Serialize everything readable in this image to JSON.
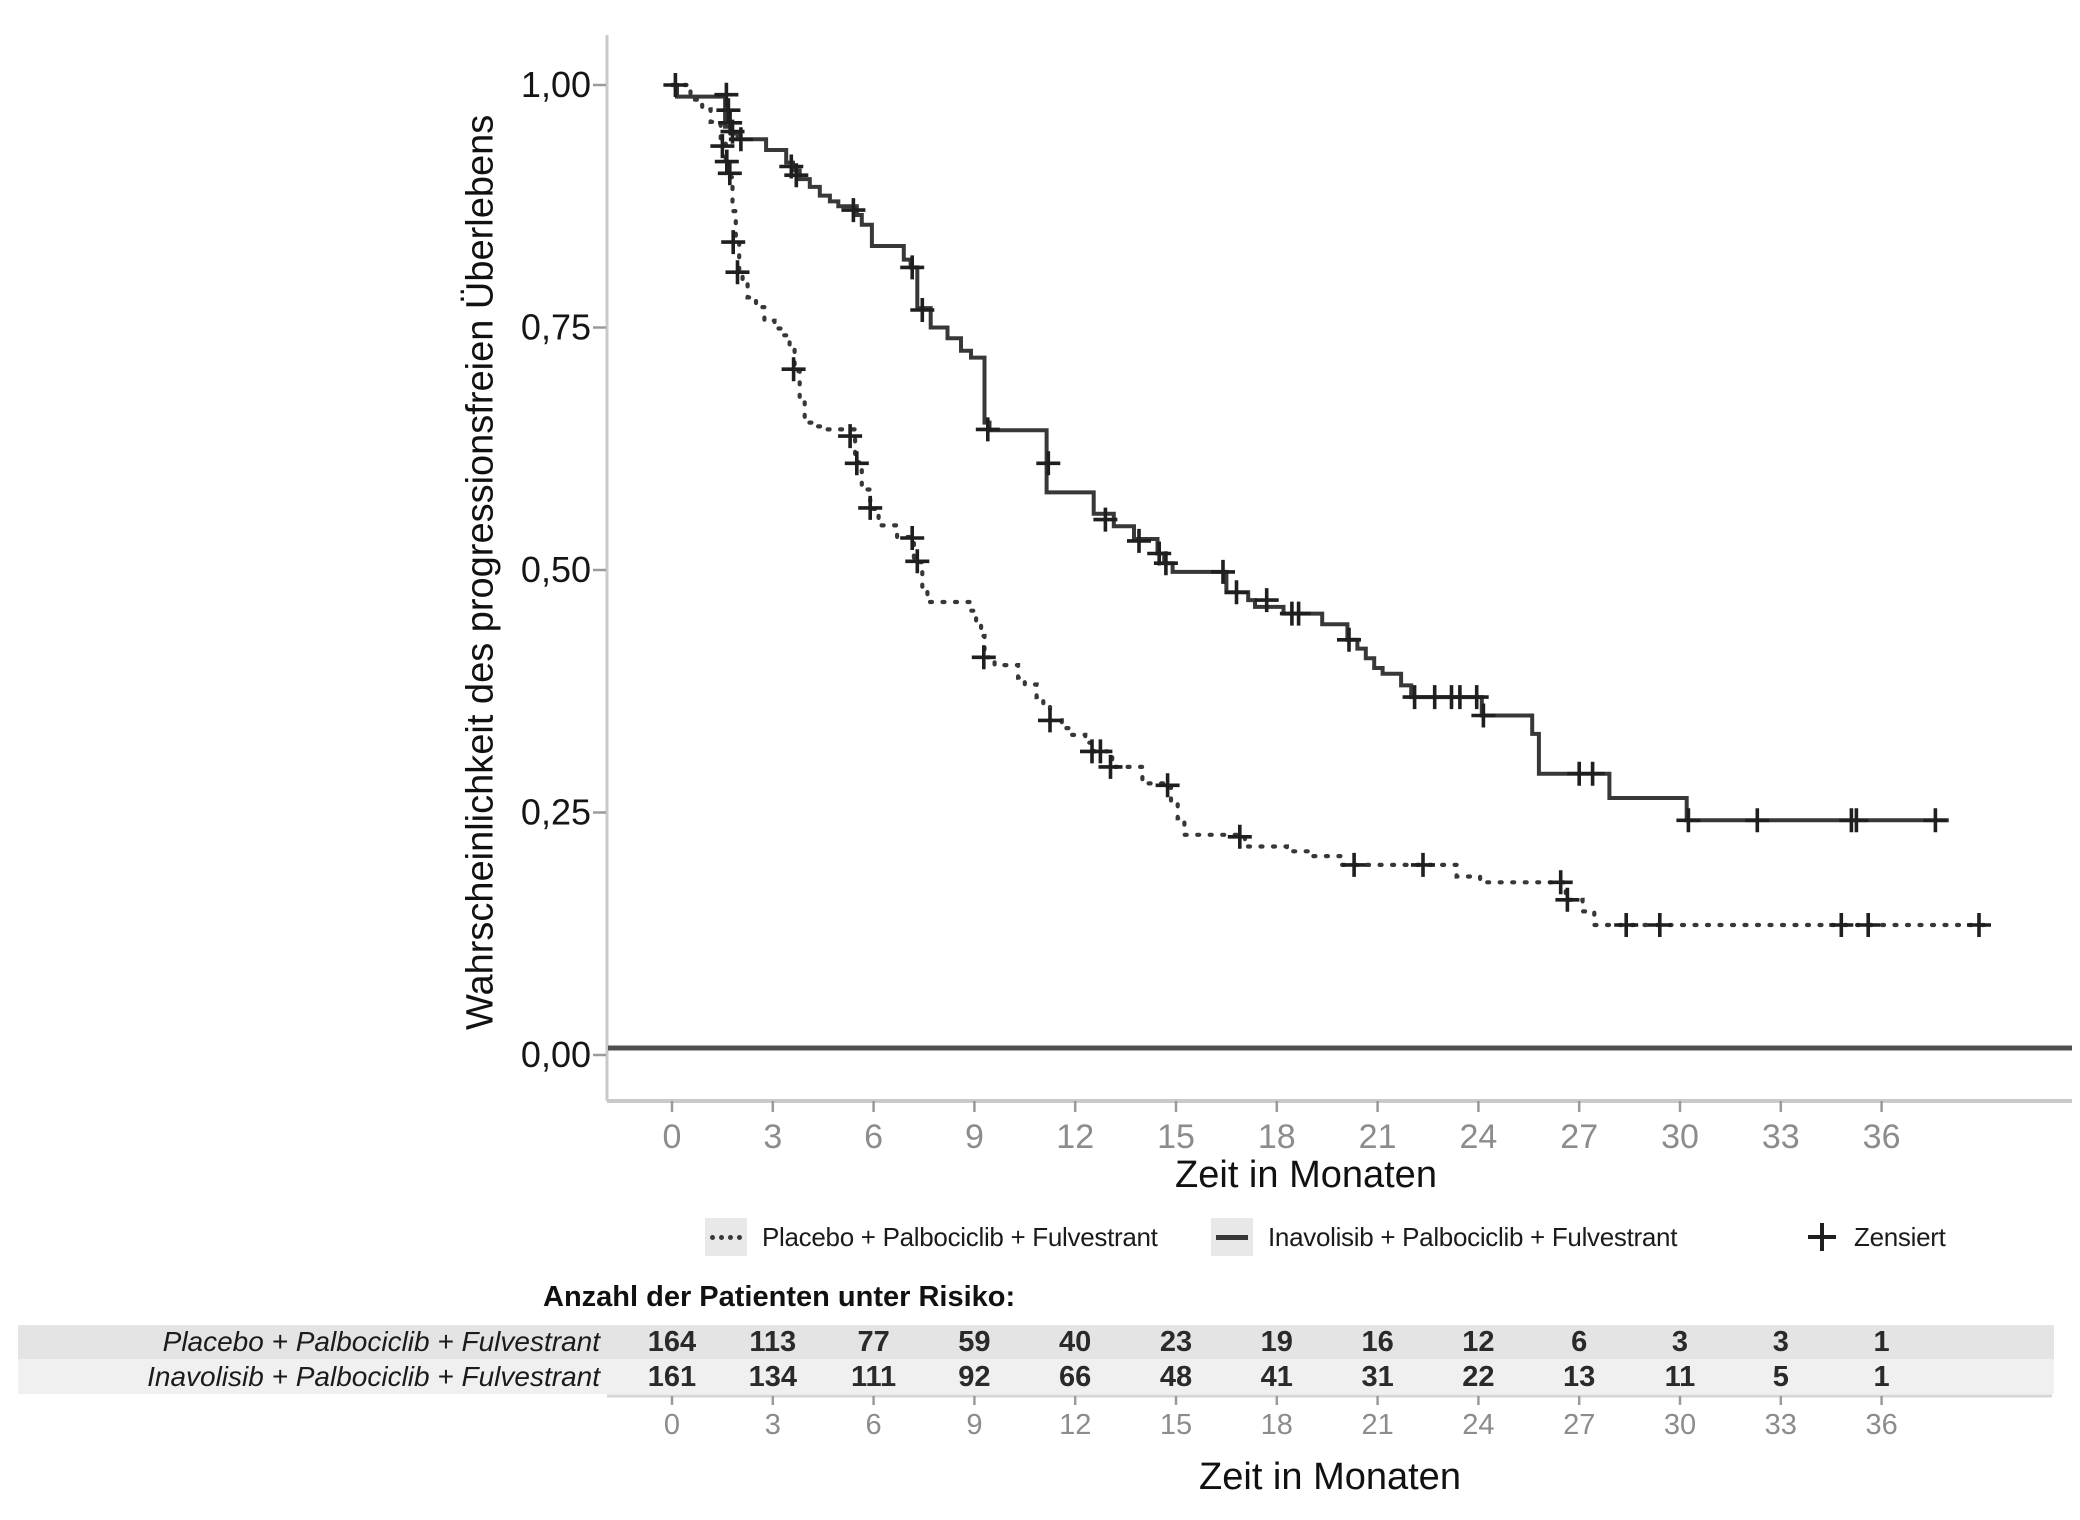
{
  "chart_data": {
    "type": "line",
    "subtype": "kaplan-meier-step",
    "title": "",
    "xlabel": "Zeit in Monaten",
    "ylabel": "Wahrscheinlichkeit des progressionsfreien Überlebens",
    "xlim": [
      0,
      41
    ],
    "ylim": [
      0,
      1.0
    ],
    "grid": false,
    "legend_position": "bottom",
    "y_ticks": [
      {
        "value": 1.0,
        "label": "1,00"
      },
      {
        "value": 0.75,
        "label": "0,75"
      },
      {
        "value": 0.5,
        "label": "0,50"
      },
      {
        "value": 0.25,
        "label": "0,25"
      },
      {
        "value": 0.0,
        "label": "0,00"
      }
    ],
    "x_ticks": [
      {
        "value": 0,
        "label": "0"
      },
      {
        "value": 3,
        "label": "3"
      },
      {
        "value": 6,
        "label": "6"
      },
      {
        "value": 9,
        "label": "9"
      },
      {
        "value": 12,
        "label": "12"
      },
      {
        "value": 15,
        "label": "15"
      },
      {
        "value": 18,
        "label": "18"
      },
      {
        "value": 21,
        "label": "21"
      },
      {
        "value": 24,
        "label": "24"
      },
      {
        "value": 27,
        "label": "27"
      },
      {
        "value": 30,
        "label": "30"
      },
      {
        "value": 33,
        "label": "33"
      },
      {
        "value": 36,
        "label": "36"
      }
    ],
    "series": [
      {
        "name": "Placebo + Palbociclib + Fulvestrant",
        "style": "dotted",
        "end_month": 39.3,
        "steps": [
          [
            0,
            1.0
          ],
          [
            0.55,
            0.985
          ],
          [
            0.9,
            0.975
          ],
          [
            1.15,
            0.962
          ],
          [
            1.45,
            0.94
          ],
          [
            1.6,
            0.925
          ],
          [
            1.7,
            0.905
          ],
          [
            1.8,
            0.87
          ],
          [
            1.9,
            0.84
          ],
          [
            2.0,
            0.807
          ],
          [
            2.1,
            0.795
          ],
          [
            2.25,
            0.781
          ],
          [
            2.5,
            0.771
          ],
          [
            2.75,
            0.757
          ],
          [
            3.05,
            0.749
          ],
          [
            3.3,
            0.742
          ],
          [
            3.5,
            0.73
          ],
          [
            3.65,
            0.705
          ],
          [
            3.8,
            0.676
          ],
          [
            3.95,
            0.652
          ],
          [
            4.3,
            0.648
          ],
          [
            4.6,
            0.645
          ],
          [
            5.45,
            0.611
          ],
          [
            5.65,
            0.583
          ],
          [
            5.9,
            0.563
          ],
          [
            6.15,
            0.546
          ],
          [
            6.7,
            0.534
          ],
          [
            7.2,
            0.508
          ],
          [
            7.45,
            0.481
          ],
          [
            7.6,
            0.467
          ],
          [
            8.9,
            0.458
          ],
          [
            9.05,
            0.448
          ],
          [
            9.2,
            0.432
          ],
          [
            9.3,
            0.41
          ],
          [
            9.6,
            0.402
          ],
          [
            10.3,
            0.389
          ],
          [
            10.5,
            0.382
          ],
          [
            10.85,
            0.369
          ],
          [
            11.05,
            0.36
          ],
          [
            11.25,
            0.345
          ],
          [
            11.6,
            0.337
          ],
          [
            11.9,
            0.33
          ],
          [
            12.3,
            0.322
          ],
          [
            12.55,
            0.313
          ],
          [
            13.1,
            0.297
          ],
          [
            14.0,
            0.28
          ],
          [
            14.85,
            0.261
          ],
          [
            15.05,
            0.244
          ],
          [
            15.25,
            0.227
          ],
          [
            17.05,
            0.215
          ],
          [
            18.3,
            0.21
          ],
          [
            19.0,
            0.205
          ],
          [
            19.9,
            0.196
          ],
          [
            23.35,
            0.184
          ],
          [
            24.05,
            0.178
          ],
          [
            26.6,
            0.16
          ],
          [
            27.1,
            0.148
          ],
          [
            27.45,
            0.134
          ]
        ],
        "censored": [
          [
            1.5,
            0.937
          ],
          [
            1.63,
            0.921
          ],
          [
            1.72,
            0.909
          ],
          [
            1.82,
            0.838
          ],
          [
            1.95,
            0.807
          ],
          [
            3.62,
            0.707
          ],
          [
            5.3,
            0.638
          ],
          [
            5.5,
            0.61
          ],
          [
            5.9,
            0.564
          ],
          [
            7.15,
            0.533
          ],
          [
            7.3,
            0.509
          ],
          [
            9.28,
            0.41
          ],
          [
            11.25,
            0.345
          ],
          [
            12.5,
            0.313
          ],
          [
            12.75,
            0.313
          ],
          [
            13.05,
            0.297
          ],
          [
            14.75,
            0.278
          ],
          [
            16.9,
            0.225
          ],
          [
            20.3,
            0.196
          ],
          [
            22.35,
            0.196
          ],
          [
            26.45,
            0.178
          ],
          [
            26.65,
            0.16
          ],
          [
            28.4,
            0.134
          ],
          [
            29.4,
            0.134
          ],
          [
            34.8,
            0.134
          ],
          [
            35.6,
            0.134
          ],
          [
            38.9,
            0.134
          ]
        ]
      },
      {
        "name": "Inavolisib + Palbociclib + Fulvestrant",
        "style": "solid",
        "end_month": 38.0,
        "steps": [
          [
            0,
            1.0
          ],
          [
            0.15,
            0.988
          ],
          [
            1.58,
            0.957
          ],
          [
            1.75,
            0.95
          ],
          [
            1.95,
            0.944
          ],
          [
            2.8,
            0.933
          ],
          [
            3.4,
            0.92
          ],
          [
            3.6,
            0.912
          ],
          [
            3.8,
            0.903
          ],
          [
            4.1,
            0.895
          ],
          [
            4.4,
            0.886
          ],
          [
            4.7,
            0.88
          ],
          [
            4.95,
            0.875
          ],
          [
            5.5,
            0.866
          ],
          [
            5.65,
            0.856
          ],
          [
            5.95,
            0.834
          ],
          [
            6.9,
            0.82
          ],
          [
            7.1,
            0.812
          ],
          [
            7.3,
            0.77
          ],
          [
            7.7,
            0.75
          ],
          [
            8.2,
            0.739
          ],
          [
            8.6,
            0.726
          ],
          [
            8.9,
            0.719
          ],
          [
            9.3,
            0.652
          ],
          [
            9.45,
            0.644
          ],
          [
            11.15,
            0.58
          ],
          [
            12.55,
            0.558
          ],
          [
            13.15,
            0.545
          ],
          [
            13.75,
            0.532
          ],
          [
            14.45,
            0.517
          ],
          [
            14.65,
            0.507
          ],
          [
            14.9,
            0.498
          ],
          [
            16.5,
            0.477
          ],
          [
            17.15,
            0.469
          ],
          [
            17.35,
            0.462
          ],
          [
            18.2,
            0.455
          ],
          [
            19.35,
            0.444
          ],
          [
            20.1,
            0.428
          ],
          [
            20.4,
            0.419
          ],
          [
            20.65,
            0.409
          ],
          [
            20.9,
            0.399
          ],
          [
            21.15,
            0.393
          ],
          [
            21.7,
            0.381
          ],
          [
            22.0,
            0.369
          ],
          [
            24.1,
            0.35
          ],
          [
            25.6,
            0.331
          ],
          [
            25.8,
            0.29
          ],
          [
            27.9,
            0.265
          ],
          [
            30.2,
            0.242
          ]
        ],
        "censored": [
          [
            0.1,
            1.0
          ],
          [
            1.62,
            0.99
          ],
          [
            1.68,
            0.974
          ],
          [
            1.73,
            0.961
          ],
          [
            1.8,
            0.952
          ],
          [
            2.05,
            0.944
          ],
          [
            3.55,
            0.916
          ],
          [
            3.7,
            0.907
          ],
          [
            5.4,
            0.871
          ],
          [
            7.15,
            0.812
          ],
          [
            7.45,
            0.768
          ],
          [
            9.4,
            0.645
          ],
          [
            11.2,
            0.61
          ],
          [
            12.9,
            0.552
          ],
          [
            13.9,
            0.53
          ],
          [
            14.5,
            0.517
          ],
          [
            14.7,
            0.507
          ],
          [
            16.4,
            0.498
          ],
          [
            16.8,
            0.477
          ],
          [
            17.7,
            0.469
          ],
          [
            18.45,
            0.455
          ],
          [
            18.65,
            0.455
          ],
          [
            20.15,
            0.428
          ],
          [
            22.1,
            0.369
          ],
          [
            22.7,
            0.369
          ],
          [
            23.2,
            0.369
          ],
          [
            23.45,
            0.369
          ],
          [
            23.95,
            0.369
          ],
          [
            24.15,
            0.35
          ],
          [
            27.0,
            0.29
          ],
          [
            27.4,
            0.29
          ],
          [
            30.25,
            0.242
          ],
          [
            32.3,
            0.242
          ],
          [
            35.1,
            0.242
          ],
          [
            35.25,
            0.242
          ],
          [
            37.6,
            0.242
          ]
        ]
      }
    ],
    "legend": [
      {
        "label": "Placebo + Palbociclib + Fulvestrant",
        "swatch": "dotted-line"
      },
      {
        "label": "Inavolisib + Palbociclib + Fulvestrant",
        "swatch": "solid-line"
      },
      {
        "label": "Zensiert",
        "swatch": "plus"
      }
    ],
    "censor_marker": "+"
  },
  "risk_table": {
    "title": "Anzahl der Patienten unter Risiko:",
    "months": [
      0,
      3,
      6,
      9,
      12,
      15,
      18,
      21,
      24,
      27,
      30,
      33,
      36
    ],
    "rows": [
      {
        "label": "Placebo + Palbociclib + Fulvestrant",
        "counts": [
          164,
          113,
          77,
          59,
          40,
          23,
          19,
          16,
          12,
          6,
          3,
          3,
          1
        ]
      },
      {
        "label": "Inavolisib + Palbociclib + Fulvestrant",
        "counts": [
          161,
          134,
          111,
          92,
          66,
          48,
          41,
          31,
          22,
          13,
          11,
          5,
          1
        ]
      }
    ],
    "xlabel": "Zeit in Monaten"
  },
  "colors": {
    "curve_line": "#383838",
    "censor_mark": "#1f1f1f",
    "axis_line": "#c9c9c9",
    "zero_line": "#4f4f4f",
    "tick_mark": "#9a9a9a",
    "x_tick_label": "#8c8c8c",
    "y_tick_label": "#151515",
    "axis_title": "#111111",
    "legend_key_bg": "#e8e8e8",
    "risk_row1_bg": "#e4e4e4",
    "risk_row2_bg": "#f0f0f0",
    "mini_axis_line": "#d6d6d6"
  }
}
